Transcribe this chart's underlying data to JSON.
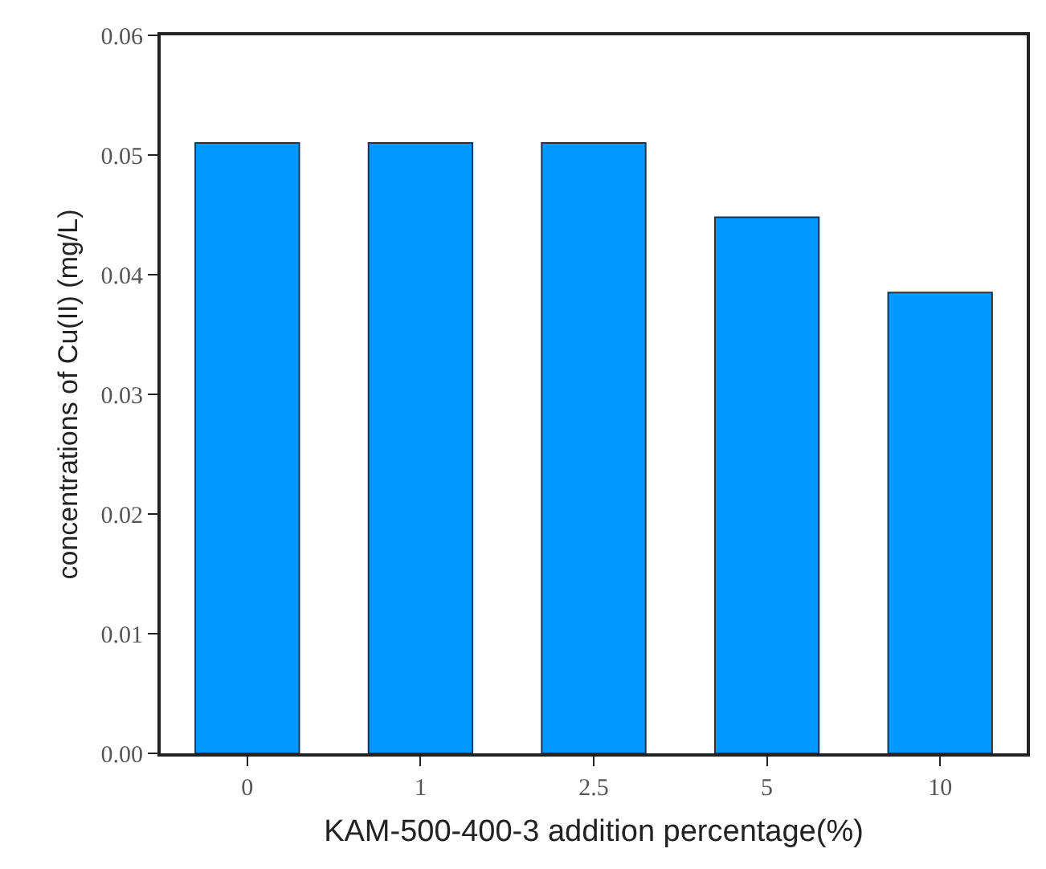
{
  "chart_data": {
    "type": "bar",
    "xlabel": "KAM-500-400-3 addition percentage(%)",
    "ylabel": "concentrations of Cu(II) (mg/L)",
    "categories": [
      "0",
      "1",
      "2.5",
      "5",
      "10"
    ],
    "values": [
      0.051,
      0.051,
      0.051,
      0.0448,
      0.0385
    ],
    "color": "#0099ff",
    "ylim": [
      0,
      0.06
    ],
    "yticks": [
      {
        "value": 0,
        "label": "0.00"
      },
      {
        "value": 0.01,
        "label": "0.01"
      },
      {
        "value": 0.02,
        "label": "0.02"
      },
      {
        "value": 0.03,
        "label": "0.03"
      },
      {
        "value": 0.04,
        "label": "0.04"
      },
      {
        "value": 0.05,
        "label": "0.05"
      },
      {
        "value": 0.06,
        "label": "0.06"
      }
    ],
    "grid": false
  }
}
